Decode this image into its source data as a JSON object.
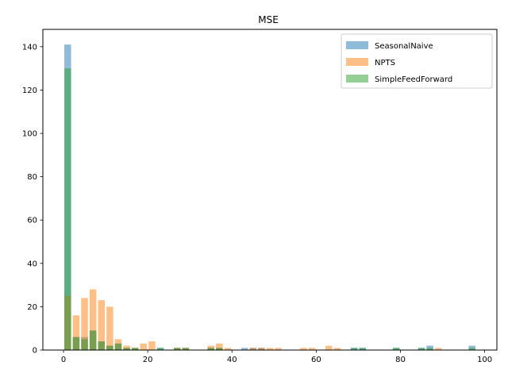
{
  "chart_data": {
    "type": "bar",
    "title": "MSE",
    "xlabel": "",
    "ylabel": "",
    "xlim": [
      -4.9,
      102.9
    ],
    "ylim": [
      0,
      148
    ],
    "x_ticks": [
      0,
      20,
      40,
      60,
      80,
      100
    ],
    "y_ticks": [
      0,
      20,
      40,
      60,
      80,
      100,
      120,
      140
    ],
    "bar_width": 1.6,
    "opacity": 0.5,
    "legend_position": "top-right",
    "grid": false,
    "series": [
      {
        "name": "SeasonalNaive",
        "color": "#1f77b4",
        "x": [
          1,
          3,
          5,
          7,
          9,
          11,
          13,
          15,
          17,
          19,
          21,
          23,
          25,
          27,
          29,
          31,
          33,
          35,
          37,
          39,
          41,
          43,
          45,
          47,
          49,
          51,
          53,
          55,
          57,
          59,
          61,
          63,
          65,
          67,
          69,
          71,
          73,
          75,
          77,
          79,
          81,
          83,
          85,
          87,
          89,
          91,
          93,
          95,
          97
        ],
        "values": [
          141,
          6,
          6,
          9,
          4,
          2,
          3,
          1,
          1,
          0,
          0,
          1,
          0,
          1,
          1,
          0,
          0,
          1,
          1,
          0,
          0,
          1,
          1,
          1,
          0,
          0,
          0,
          0,
          0,
          0,
          0,
          0,
          0,
          0,
          1,
          1,
          0,
          0,
          0,
          1,
          0,
          0,
          1,
          2,
          0,
          0,
          0,
          0,
          2
        ]
      },
      {
        "name": "NPTS",
        "color": "#ff7f0e",
        "x": [
          1,
          3,
          5,
          7,
          9,
          11,
          13,
          15,
          17,
          19,
          21,
          23,
          25,
          27,
          29,
          31,
          33,
          35,
          37,
          39,
          41,
          43,
          45,
          47,
          49,
          51,
          53,
          55,
          57,
          59,
          61,
          63,
          65,
          67,
          69,
          71,
          73,
          75,
          77,
          79,
          81,
          83,
          85,
          87,
          89,
          91,
          93,
          95,
          97
        ],
        "values": [
          25,
          16,
          24,
          28,
          23,
          20,
          5,
          2,
          1,
          3,
          4,
          0,
          0,
          1,
          1,
          0,
          0,
          2,
          3,
          1,
          0,
          0,
          1,
          1,
          1,
          1,
          0,
          0,
          1,
          1,
          0,
          2,
          1,
          0,
          0,
          0,
          0,
          0,
          0,
          0,
          0,
          0,
          0,
          0,
          1,
          0,
          0,
          0,
          0
        ]
      },
      {
        "name": "SimpleFeedForward",
        "color": "#2ca02c",
        "x": [
          1,
          3,
          5,
          7,
          9,
          11,
          13,
          15,
          17,
          19,
          21,
          23,
          25,
          27,
          29,
          31,
          33,
          35,
          37,
          39,
          41,
          43,
          45,
          47,
          49,
          51,
          53,
          55,
          57,
          59,
          61,
          63,
          65,
          67,
          69,
          71,
          73,
          75,
          77,
          79,
          81,
          83,
          85,
          87,
          89,
          91,
          93,
          95,
          97
        ],
        "values": [
          130,
          6,
          5,
          9,
          4,
          2,
          3,
          1,
          1,
          0,
          0,
          1,
          0,
          1,
          1,
          0,
          0,
          1,
          1,
          0,
          0,
          0,
          0,
          0,
          0,
          0,
          0,
          0,
          0,
          0,
          0,
          0,
          0,
          0,
          1,
          1,
          0,
          0,
          0,
          1,
          0,
          0,
          1,
          1,
          0,
          0,
          0,
          0,
          1
        ]
      }
    ]
  }
}
